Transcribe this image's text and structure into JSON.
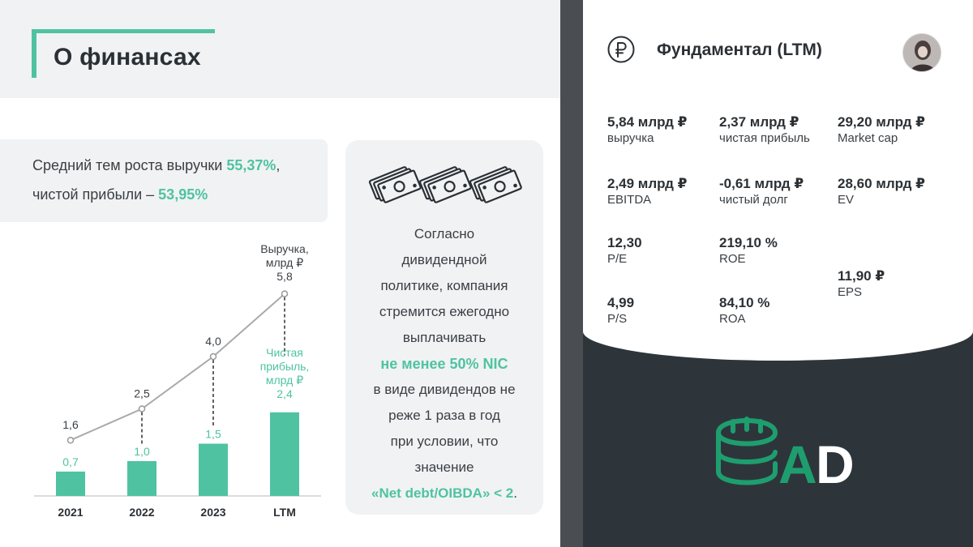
{
  "header": {
    "title": "О финансах"
  },
  "growth": {
    "line1_prefix": "Средний тем роста выручки ",
    "line1_value": "55,37%",
    "line1_suffix": ",",
    "line2_prefix": "чистой прибыли – ",
    "line2_value": "53,95%"
  },
  "chart_data": {
    "type": "bar+line",
    "categories": [
      "2021",
      "2022",
      "2023",
      "LTM"
    ],
    "series": [
      {
        "name": "Чистая прибыль, млрд ₽",
        "type": "bar",
        "values": [
          0.7,
          1.0,
          1.5,
          2.4
        ],
        "labels": [
          "0,7",
          "1,0",
          "1,5",
          "2,4"
        ]
      },
      {
        "name": "Выручка, млрд ₽",
        "type": "line",
        "values": [
          1.6,
          2.5,
          4.0,
          5.8
        ],
        "labels": [
          "1,6",
          "2,5",
          "4,0",
          "5,8"
        ]
      }
    ],
    "legend_labels": {
      "revenue_line1": "Выручка,",
      "revenue_line2": "млрд ₽",
      "profit_line1": "Чистая",
      "profit_line2": "прибыль,",
      "profit_line3": "млрд ₽"
    },
    "colors": {
      "bar": "#4fc3a1",
      "line": "#aaaaaa",
      "bar_label": "#4fc3a1",
      "line_label": "#3a3f44"
    },
    "ylim": [
      0,
      6.5
    ]
  },
  "dividends": {
    "lines": [
      "Согласно",
      "дивидендной",
      "политике, компания",
      "стремится ежегодно",
      "выплачивать"
    ],
    "highlight": "не менее 50% NIC",
    "lines2": [
      "в виде дивидендов не",
      "реже 1 раза в год",
      "при условии, что",
      "значение"
    ],
    "condition": "«Net debt/OIBDA» < 2",
    "condition_suffix": ".",
    "icon": "money-bills-icon"
  },
  "fundamental": {
    "title": "Фундаментал (LTM)",
    "icon": "ruble-icon",
    "metrics": [
      {
        "value": "5,84 млрд ₽",
        "label": "выручка"
      },
      {
        "value": "2,37 млрд ₽",
        "label": "чистая прибыль"
      },
      {
        "value": "29,20 млрд ₽",
        "label": "Market cap"
      },
      {
        "value": "2,49 млрд ₽",
        "label": "EBITDA"
      },
      {
        "value": "-0,61 млрд ₽",
        "label": "чистый долг"
      },
      {
        "value": "28,60 млрд ₽",
        "label": "EV"
      },
      {
        "value": "12,30",
        "label": "P/E"
      },
      {
        "value": "219,10 %",
        "label": "ROE"
      },
      {
        "value": "11,90 ₽",
        "label": "EPS"
      },
      {
        "value": "4,99",
        "label": "P/S"
      },
      {
        "value": "84,10 %",
        "label": "ROA"
      }
    ]
  },
  "logo": {
    "text": "AD",
    "color": "#1e9e6e"
  },
  "colors": {
    "accent": "#4fc3a1",
    "dark": "#2d353b",
    "panel": "#f0f2f4"
  }
}
